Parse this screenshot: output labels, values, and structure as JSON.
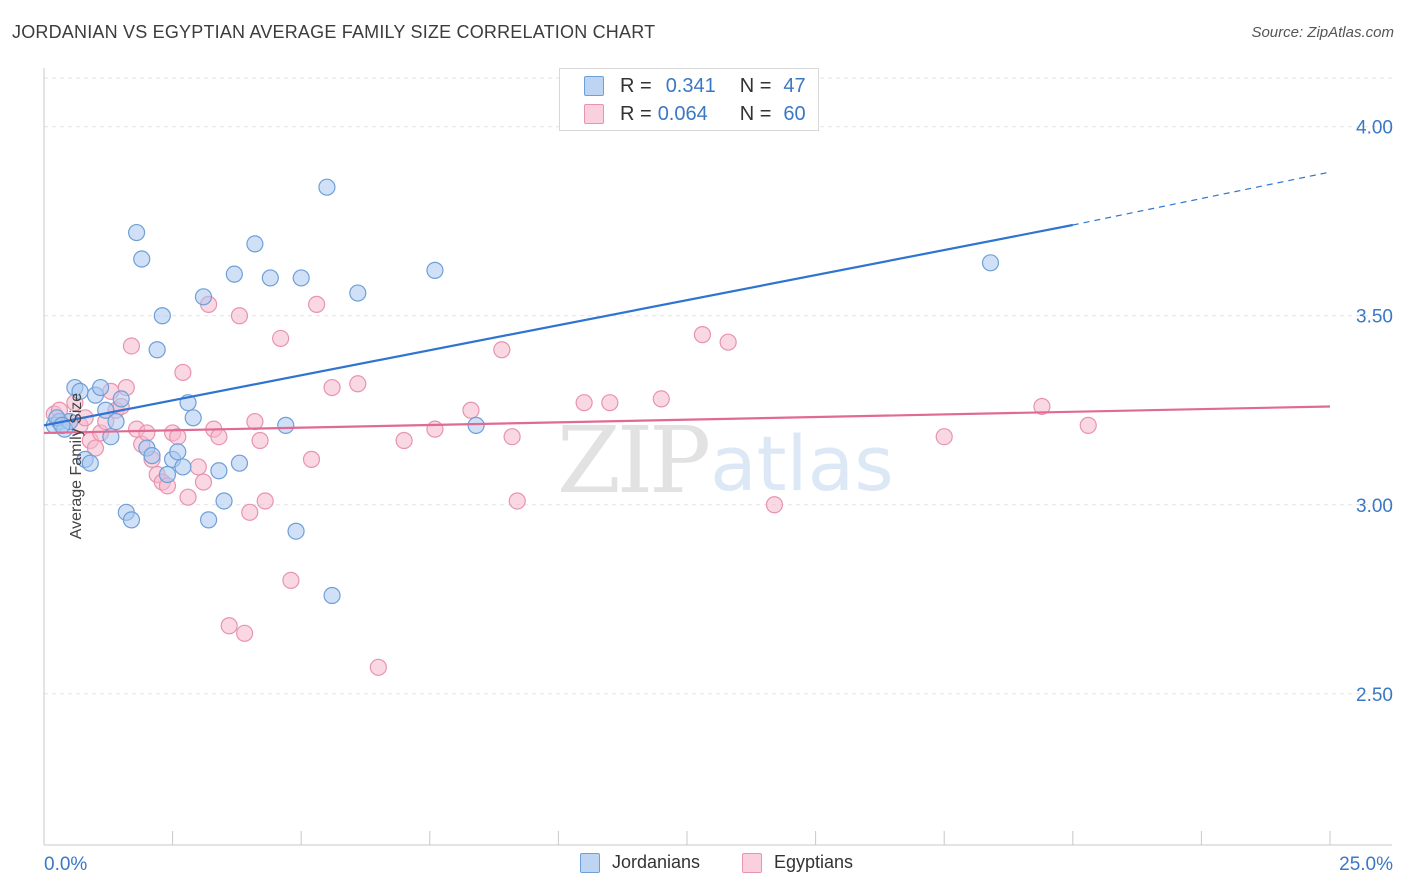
{
  "title": "JORDANIAN VS EGYPTIAN AVERAGE FAMILY SIZE CORRELATION CHART",
  "source": "Source: ZipAtlas.com",
  "legend": {
    "series1": {
      "r_label": "R =",
      "r_value": "0.341",
      "n_label": "N =",
      "n_value": "47"
    },
    "series2": {
      "r_label": "R =",
      "r_value": "0.064",
      "n_label": "N =",
      "n_value": "60"
    }
  },
  "watermark": {
    "zip": "ZIP",
    "atlas": "atlas"
  },
  "chart_data": {
    "type": "scatter",
    "title": "JORDANIAN VS EGYPTIAN AVERAGE FAMILY SIZE CORRELATION CHART",
    "xlabel": "",
    "ylabel": "Average Family Size",
    "xlim": [
      0,
      25
    ],
    "ylim": [
      2.1,
      4.15
    ],
    "x_tick_labels": [
      "0.0%",
      "25.0%"
    ],
    "y_ticks": [
      2.5,
      3.0,
      3.5,
      4.0
    ],
    "y_tick_labels": [
      "2.50",
      "3.00",
      "3.50",
      "4.00"
    ],
    "grid": true,
    "colors": {
      "jordanians_fill": "#a9c8f0",
      "jordanians_stroke": "#6f9fd8",
      "jordanians_line": "#2f74d0",
      "egyptians_fill": "#f6b8cc",
      "egyptians_stroke": "#e893b0",
      "egyptians_line": "#e06a93",
      "tick_label": "#3b78c4",
      "grid": "#e3e3e3"
    },
    "series": [
      {
        "name": "Jordanians",
        "x": [
          0.2,
          0.3,
          0.4,
          0.5,
          0.6,
          0.7,
          0.8,
          0.9,
          1.0,
          1.1,
          1.2,
          1.3,
          1.4,
          1.5,
          1.6,
          1.7,
          1.8,
          1.9,
          2.0,
          2.1,
          2.2,
          2.3,
          2.4,
          2.5,
          2.6,
          2.7,
          2.8,
          2.9,
          3.1,
          3.2,
          3.4,
          3.5,
          3.7,
          3.8,
          4.1,
          4.4,
          4.7,
          4.9,
          5.0,
          5.5,
          5.6,
          6.1,
          7.6,
          8.4,
          18.4,
          0.25,
          0.35
        ],
        "y": [
          3.21,
          3.22,
          3.2,
          3.22,
          3.31,
          3.3,
          3.12,
          3.11,
          3.29,
          3.31,
          3.25,
          3.18,
          3.22,
          3.28,
          2.98,
          2.96,
          3.72,
          3.65,
          3.15,
          3.13,
          3.41,
          3.5,
          3.08,
          3.12,
          3.14,
          3.1,
          3.27,
          3.23,
          3.55,
          2.96,
          3.09,
          3.01,
          3.61,
          3.11,
          3.69,
          3.6,
          3.21,
          2.93,
          3.6,
          3.84,
          2.76,
          3.56,
          3.62,
          3.21,
          3.64,
          3.23,
          3.21
        ]
      },
      {
        "name": "Egyptians",
        "x": [
          0.2,
          0.3,
          0.5,
          0.6,
          0.7,
          0.8,
          0.9,
          1.0,
          1.1,
          1.2,
          1.3,
          1.4,
          1.5,
          1.6,
          1.7,
          1.8,
          1.9,
          2.0,
          2.1,
          2.2,
          2.3,
          2.4,
          2.5,
          2.6,
          2.7,
          2.8,
          3.0,
          3.1,
          3.2,
          3.3,
          3.4,
          3.6,
          3.8,
          3.9,
          4.0,
          4.1,
          4.2,
          4.3,
          4.6,
          4.8,
          5.2,
          5.3,
          5.6,
          6.1,
          6.5,
          7.0,
          7.6,
          8.3,
          8.9,
          9.1,
          9.2,
          10.5,
          11.0,
          12.0,
          12.8,
          13.3,
          14.2,
          17.5,
          19.4,
          20.3
        ],
        "y": [
          3.24,
          3.25,
          3.22,
          3.27,
          3.21,
          3.23,
          3.17,
          3.15,
          3.19,
          3.22,
          3.3,
          3.25,
          3.26,
          3.31,
          3.42,
          3.2,
          3.16,
          3.19,
          3.12,
          3.08,
          3.06,
          3.05,
          3.19,
          3.18,
          3.35,
          3.02,
          3.1,
          3.06,
          3.53,
          3.2,
          3.18,
          2.68,
          3.5,
          2.66,
          2.98,
          3.22,
          3.17,
          3.01,
          3.44,
          2.8,
          3.12,
          3.53,
          3.31,
          3.32,
          2.57,
          3.17,
          3.2,
          3.25,
          3.41,
          3.18,
          3.01,
          3.27,
          3.27,
          3.28,
          3.45,
          3.43,
          3.0,
          3.18,
          3.26,
          3.21
        ]
      }
    ],
    "trend_lines": [
      {
        "series": "Jordanians",
        "x_start": 0,
        "y_start": 3.21,
        "x_end": 20,
        "y_end": 3.74,
        "dashed_to_x": 25,
        "dashed_to_y": 3.88
      },
      {
        "series": "Egyptians",
        "x_start": 0,
        "y_start": 3.19,
        "x_end": 25,
        "y_end": 3.26
      }
    ]
  }
}
